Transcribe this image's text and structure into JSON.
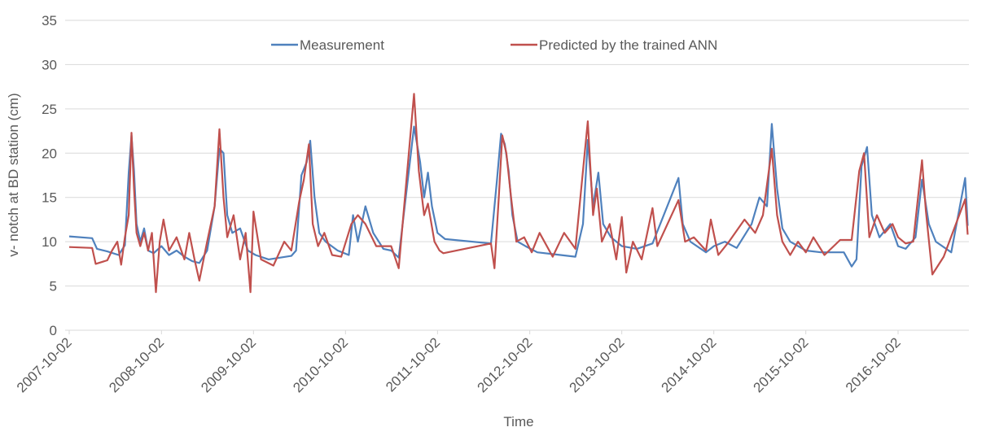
{
  "chart_data": {
    "type": "line",
    "y_label": "v- notch at BD station (cm)",
    "x_label": "Time",
    "legend": "top",
    "grid": true,
    "ylim": [
      0,
      35
    ],
    "yticks": [
      0,
      5,
      10,
      15,
      20,
      25,
      30,
      35
    ],
    "xlim": [
      "2007-10-02",
      "2017-07-10"
    ],
    "xticks": [
      "2007-10-02",
      "2008-10-02",
      "2009-10-02",
      "2010-10-02",
      "2011-10-02",
      "2012-10-02",
      "2013-10-02",
      "2014-10-02",
      "2015-10-02",
      "2016-10-02"
    ],
    "series": [
      {
        "name": "Measurement",
        "color": "#4f81bd",
        "x": [
          "2007-10-02",
          "2008-01-01",
          "2008-01-20",
          "2008-03-01",
          "2008-04-15",
          "2008-05-10",
          "2008-05-25",
          "2008-06-05",
          "2008-06-15",
          "2008-06-25",
          "2008-07-10",
          "2008-07-25",
          "2008-08-10",
          "2008-09-01",
          "2008-10-02",
          "2008-11-01",
          "2008-12-01",
          "2009-01-01",
          "2009-02-01",
          "2009-03-01",
          "2009-04-01",
          "2009-05-01",
          "2009-05-20",
          "2009-06-05",
          "2009-06-20",
          "2009-07-10",
          "2009-08-10",
          "2009-09-10",
          "2009-10-10",
          "2009-12-01",
          "2010-03-01",
          "2010-03-20",
          "2010-04-10",
          "2010-05-01",
          "2010-05-15",
          "2010-06-01",
          "2010-06-20",
          "2010-07-15",
          "2010-09-01",
          "2010-10-15",
          "2010-11-01",
          "2010-11-20",
          "2010-12-20",
          "2011-01-20",
          "2011-03-01",
          "2011-04-01",
          "2011-05-01",
          "2011-07-01",
          "2011-07-25",
          "2011-08-10",
          "2011-08-25",
          "2011-09-10",
          "2011-10-02",
          "2011-11-01",
          "2012-05-01",
          "2012-05-25",
          "2012-06-10",
          "2012-06-25",
          "2012-07-10",
          "2012-07-25",
          "2012-08-15",
          "2012-09-15",
          "2012-11-01",
          "2013-02-01",
          "2013-04-01",
          "2013-05-01",
          "2013-05-20",
          "2013-06-10",
          "2013-07-01",
          "2013-07-20",
          "2013-08-20",
          "2013-10-02",
          "2013-12-01",
          "2014-02-01",
          "2014-05-15",
          "2014-06-01",
          "2014-07-01",
          "2014-09-01",
          "2014-10-02",
          "2014-11-15",
          "2015-01-01",
          "2015-03-01",
          "2015-04-01",
          "2015-05-01",
          "2015-05-20",
          "2015-06-10",
          "2015-07-01",
          "2015-08-01",
          "2015-10-02",
          "2015-12-01",
          "2016-03-01",
          "2016-04-01",
          "2016-04-20",
          "2016-05-10",
          "2016-06-01",
          "2016-06-20",
          "2016-07-20",
          "2016-09-01",
          "2016-10-02",
          "2016-11-01",
          "2016-12-10",
          "2017-01-05",
          "2017-02-01",
          "2017-03-01",
          "2017-05-01",
          "2017-06-25",
          "2017-07-05"
        ],
        "values": [
          10.6,
          10.4,
          9.2,
          8.9,
          8.5,
          9.6,
          17.8,
          22,
          18,
          12,
          10,
          11.5,
          9,
          8.7,
          9.5,
          8.5,
          9,
          8.3,
          7.8,
          7.6,
          9,
          14,
          20.5,
          20,
          13,
          11,
          11.5,
          9,
          8.5,
          8,
          8.4,
          9,
          17.5,
          19,
          21.4,
          15,
          11,
          10,
          9,
          8.5,
          13,
          10,
          14,
          11,
          9.2,
          9,
          8.2,
          23,
          19,
          15,
          17.8,
          14,
          11,
          10.3,
          9.8,
          17,
          22.2,
          21,
          18,
          13,
          10,
          9.5,
          8.8,
          8.5,
          8.3,
          12,
          21.5,
          14,
          17.8,
          12,
          10.5,
          9.5,
          9.2,
          9.8,
          17.2,
          12,
          10,
          8.8,
          9.5,
          10,
          9.3,
          12,
          15,
          14,
          23.3,
          16,
          11.5,
          10,
          9,
          8.8,
          8.8,
          7.2,
          8,
          18.5,
          20.7,
          13,
          10.5,
          12,
          9.5,
          9.2,
          10.5,
          17,
          12,
          10,
          8.8,
          17.2,
          11.8
        ]
      },
      {
        "name": "Predicted by the trained ANN",
        "color": "#c0504d",
        "x": [
          "2007-10-02",
          "2008-01-01",
          "2008-01-15",
          "2008-03-01",
          "2008-03-20",
          "2008-04-10",
          "2008-04-25",
          "2008-05-10",
          "2008-05-25",
          "2008-06-05",
          "2008-06-15",
          "2008-06-25",
          "2008-07-10",
          "2008-07-25",
          "2008-08-10",
          "2008-08-25",
          "2008-09-10",
          "2008-09-25",
          "2008-10-10",
          "2008-11-01",
          "2008-12-01",
          "2009-01-01",
          "2009-01-20",
          "2009-02-10",
          "2009-03-01",
          "2009-04-01",
          "2009-05-01",
          "2009-05-20",
          "2009-06-05",
          "2009-06-20",
          "2009-07-15",
          "2009-08-10",
          "2009-09-01",
          "2009-09-20",
          "2009-10-02",
          "2009-11-01",
          "2009-12-20",
          "2010-02-01",
          "2010-03-01",
          "2010-04-01",
          "2010-04-20",
          "2010-05-10",
          "2010-05-25",
          "2010-06-15",
          "2010-07-10",
          "2010-08-10",
          "2010-09-15",
          "2010-10-25",
          "2010-11-20",
          "2010-12-20",
          "2011-02-01",
          "2011-04-01",
          "2011-05-01",
          "2011-07-01",
          "2011-07-20",
          "2011-08-10",
          "2011-08-25",
          "2011-09-20",
          "2011-10-10",
          "2011-10-25",
          "2012-05-01",
          "2012-05-15",
          "2012-06-01",
          "2012-06-15",
          "2012-07-01",
          "2012-07-20",
          "2012-08-10",
          "2012-09-10",
          "2012-10-10",
          "2012-11-10",
          "2013-01-01",
          "2013-02-15",
          "2013-04-01",
          "2013-05-20",
          "2013-06-10",
          "2013-06-25",
          "2013-07-15",
          "2013-08-15",
          "2013-09-10",
          "2013-10-02",
          "2013-10-20",
          "2013-11-15",
          "2013-12-20",
          "2014-02-01",
          "2014-02-20",
          "2014-05-15",
          "2014-06-10",
          "2014-07-15",
          "2014-09-01",
          "2014-09-20",
          "2014-10-20",
          "2014-12-01",
          "2015-02-01",
          "2015-03-15",
          "2015-04-15",
          "2015-05-20",
          "2015-06-10",
          "2015-07-01",
          "2015-08-01",
          "2015-09-01",
          "2015-10-02",
          "2015-11-01",
          "2015-12-15",
          "2016-02-15",
          "2016-04-01",
          "2016-05-01",
          "2016-05-20",
          "2016-06-10",
          "2016-07-10",
          "2016-08-10",
          "2016-09-10",
          "2016-10-02",
          "2016-11-01",
          "2016-12-01",
          "2017-01-05",
          "2017-01-20",
          "2017-02-15",
          "2017-04-01",
          "2017-06-25",
          "2017-07-05"
        ],
        "values": [
          9.4,
          9.3,
          7.5,
          7.9,
          9,
          10,
          7.4,
          10.5,
          13,
          22.3,
          16,
          11,
          9.5,
          11,
          9,
          11,
          4.3,
          10,
          12.5,
          9,
          10.5,
          8,
          11,
          8,
          5.6,
          10,
          14,
          22.7,
          15,
          10.5,
          13,
          8,
          11,
          4.3,
          13.4,
          8,
          7.3,
          10,
          9,
          14.5,
          17,
          21,
          12,
          9.5,
          11,
          8.5,
          8.3,
          12,
          13,
          12,
          9.5,
          9.5,
          7,
          26.7,
          18,
          13,
          14.3,
          10,
          9,
          8.7,
          9.8,
          7,
          15,
          22,
          20,
          15,
          10,
          10.5,
          8.8,
          11,
          8.3,
          11,
          9.2,
          23.6,
          13,
          16,
          10,
          12,
          8,
          12.8,
          6.5,
          10,
          8,
          13.8,
          9.5,
          14.7,
          10,
          10.5,
          9,
          12.5,
          8.5,
          10,
          12.5,
          11,
          13,
          20.5,
          13,
          10,
          8.5,
          10,
          8.8,
          10.5,
          8.5,
          10.2,
          10.2,
          18,
          20,
          10.5,
          13,
          11,
          12,
          10.5,
          9.8,
          10,
          19.2,
          13.5,
          6.3,
          8.3,
          14.8,
          10.8
        ]
      }
    ]
  }
}
